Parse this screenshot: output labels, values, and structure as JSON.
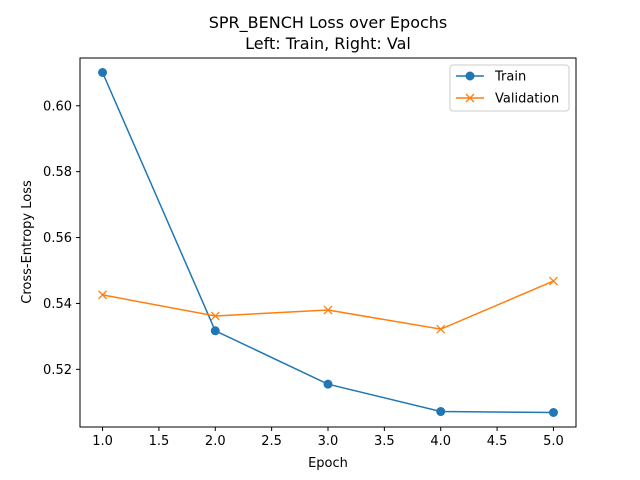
{
  "chart_data": {
    "type": "line",
    "title": "SPR_BENCH Loss over Epochs",
    "subtitle": "Left: Train, Right: Val",
    "xlabel": "Epoch",
    "ylabel": "Cross-Entropy Loss",
    "x": [
      1,
      2,
      3,
      4,
      5
    ],
    "xlim": [
      0.8,
      5.2
    ],
    "ylim": [
      0.5025,
      0.6145
    ],
    "xticks": [
      1.0,
      1.5,
      2.0,
      2.5,
      3.0,
      3.5,
      4.0,
      4.5,
      5.0
    ],
    "xtick_labels": [
      "1.0",
      "1.5",
      "2.0",
      "2.5",
      "3.0",
      "3.5",
      "4.0",
      "4.5",
      "5.0"
    ],
    "yticks": [
      0.52,
      0.54,
      0.56,
      0.58,
      0.6
    ],
    "ytick_labels": [
      "0.52",
      "0.54",
      "0.56",
      "0.58",
      "0.60"
    ],
    "grid": false,
    "legend_position": "top-right",
    "series": [
      {
        "name": "Train",
        "values": [
          0.6101,
          0.5317,
          0.5155,
          0.5072,
          0.5069
        ],
        "color": "#1f77b4",
        "marker": "circle"
      },
      {
        "name": "Validation",
        "values": [
          0.5426,
          0.5362,
          0.538,
          0.5322,
          0.5468
        ],
        "color": "#ff7f0e",
        "marker": "x"
      }
    ]
  }
}
